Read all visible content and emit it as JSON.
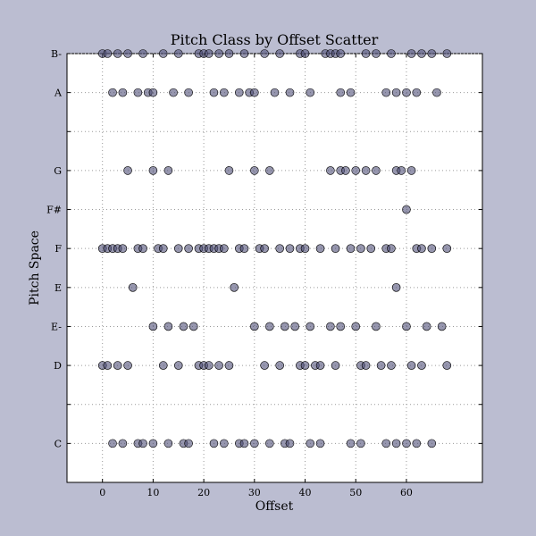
{
  "chart_data": {
    "type": "scatter",
    "title": "Pitch Class by Offset Scatter",
    "xlabel": "Offset",
    "ylabel": "Pitch Space",
    "xlim": [
      -7,
      75
    ],
    "ylim": [
      -1,
      10
    ],
    "xticks": [
      0,
      10,
      20,
      30,
      40,
      50,
      60
    ],
    "yticks": [
      {
        "value": 0,
        "label": "C"
      },
      {
        "value": 1,
        "label": ""
      },
      {
        "value": 2,
        "label": "D"
      },
      {
        "value": 3,
        "label": "E-"
      },
      {
        "value": 4,
        "label": "E"
      },
      {
        "value": 5,
        "label": "F"
      },
      {
        "value": 6,
        "label": "F#"
      },
      {
        "value": 7,
        "label": "G"
      },
      {
        "value": 8,
        "label": ""
      },
      {
        "value": 9,
        "label": "A"
      },
      {
        "value": 10,
        "label": "B-"
      }
    ],
    "grid": true,
    "marker_color": "#505078",
    "marker_opacity": 0.6,
    "series": [
      {
        "name": "B-",
        "y": 10,
        "x": [
          0,
          1,
          3,
          5,
          8,
          12,
          15,
          19,
          20,
          21,
          23,
          25,
          28,
          32,
          35,
          39,
          40,
          44,
          45,
          46,
          47,
          52,
          54,
          57,
          61,
          63,
          65,
          68
        ]
      },
      {
        "name": "A",
        "y": 9,
        "x": [
          2,
          4,
          7,
          9,
          10,
          14,
          17,
          22,
          24,
          27,
          29,
          30,
          34,
          37,
          41,
          47,
          49,
          56,
          58,
          60,
          62,
          66
        ]
      },
      {
        "name": "G",
        "y": 7,
        "x": [
          5,
          10,
          13,
          25,
          30,
          33,
          45,
          47,
          48,
          50,
          52,
          54,
          58,
          59,
          61
        ]
      },
      {
        "name": "F#",
        "y": 6,
        "x": [
          60
        ]
      },
      {
        "name": "F",
        "y": 5,
        "x": [
          0,
          1,
          2,
          3,
          4,
          7,
          8,
          11,
          12,
          15,
          17,
          19,
          20,
          21,
          22,
          23,
          24,
          27,
          28,
          31,
          32,
          35,
          37,
          39,
          40,
          43,
          46,
          49,
          51,
          53,
          56,
          57,
          62,
          63,
          65,
          68
        ]
      },
      {
        "name": "E",
        "y": 4,
        "x": [
          6,
          26,
          58
        ]
      },
      {
        "name": "E-",
        "y": 3,
        "x": [
          10,
          13,
          16,
          18,
          30,
          33,
          36,
          38,
          41,
          45,
          47,
          50,
          54,
          60,
          64,
          67
        ]
      },
      {
        "name": "D",
        "y": 2,
        "x": [
          0,
          1,
          3,
          5,
          12,
          15,
          19,
          20,
          21,
          23,
          25,
          32,
          35,
          39,
          40,
          42,
          43,
          46,
          51,
          52,
          55,
          57,
          61,
          63,
          68
        ]
      },
      {
        "name": "C",
        "y": 0,
        "x": [
          2,
          4,
          7,
          8,
          10,
          13,
          16,
          17,
          22,
          24,
          27,
          28,
          30,
          33,
          36,
          37,
          41,
          43,
          49,
          51,
          56,
          58,
          60,
          62,
          65
        ]
      }
    ]
  }
}
